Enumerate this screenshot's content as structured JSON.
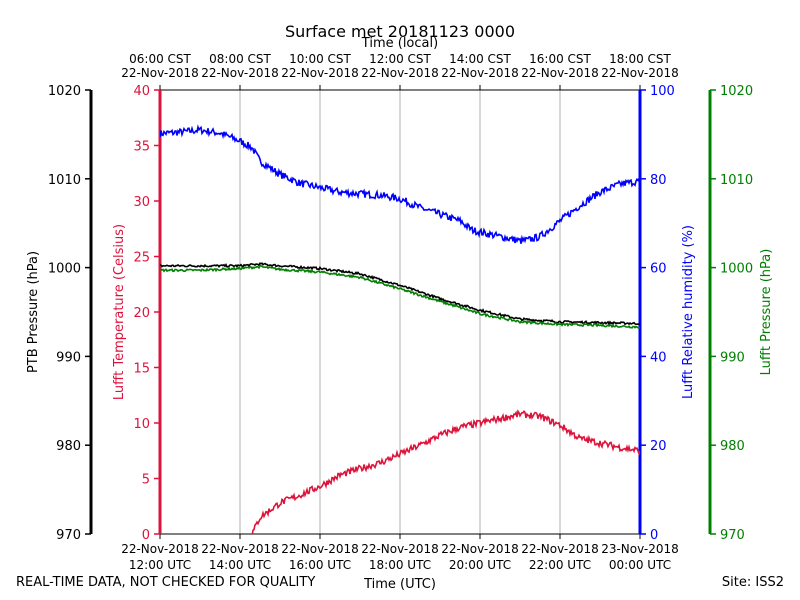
{
  "chart_data": {
    "type": "line",
    "title": "Surface met 20181123 0000",
    "x_top_label": "Time (local)",
    "x_bottom_label": "Time (UTC)",
    "x_range_utc_hours": [
      12,
      24
    ],
    "x_top_ticks": [
      {
        "time": "06:00 CST",
        "date": "22-Nov-2018"
      },
      {
        "time": "08:00 CST",
        "date": "22-Nov-2018"
      },
      {
        "time": "10:00 CST",
        "date": "22-Nov-2018"
      },
      {
        "time": "12:00 CST",
        "date": "22-Nov-2018"
      },
      {
        "time": "14:00 CST",
        "date": "22-Nov-2018"
      },
      {
        "time": "16:00 CST",
        "date": "22-Nov-2018"
      },
      {
        "time": "18:00 CST",
        "date": "22-Nov-2018"
      }
    ],
    "x_bottom_ticks": [
      {
        "date": "22-Nov-2018",
        "time": "12:00 UTC"
      },
      {
        "date": "22-Nov-2018",
        "time": "14:00 UTC"
      },
      {
        "date": "22-Nov-2018",
        "time": "16:00 UTC"
      },
      {
        "date": "22-Nov-2018",
        "time": "18:00 UTC"
      },
      {
        "date": "22-Nov-2018",
        "time": "20:00 UTC"
      },
      {
        "date": "22-Nov-2018",
        "time": "22:00 UTC"
      },
      {
        "date": "23-Nov-2018",
        "time": "00:00 UTC"
      }
    ],
    "axes": {
      "ptb_pressure": {
        "label": "PTB Pressure (hPa)",
        "range": [
          970,
          1020
        ],
        "ticks": [
          "970",
          "980",
          "990",
          "1000",
          "1010",
          "1020"
        ],
        "color": "#000000"
      },
      "temperature": {
        "label": "Lufft Temperature (Celsius)",
        "range": [
          0,
          40
        ],
        "ticks": [
          "0",
          "5",
          "10",
          "15",
          "20",
          "25",
          "30",
          "35",
          "40"
        ],
        "color": "#dc143c"
      },
      "humidity": {
        "label": "Lufft Relative humidity (%)",
        "range": [
          0,
          100
        ],
        "ticks": [
          "0",
          "20",
          "40",
          "60",
          "80",
          "100"
        ],
        "color": "#0000ff"
      },
      "lufft_pressure": {
        "label": "Lufft Pressure (hPa)",
        "range": [
          970,
          1020
        ],
        "ticks": [
          "970",
          "980",
          "990",
          "1000",
          "1010",
          "1020"
        ],
        "color": "#008000"
      }
    },
    "series": [
      {
        "name": "Lufft Relative humidity (%)",
        "axis": "humidity",
        "color": "#0000ff",
        "x": [
          12.0,
          12.5,
          13.0,
          13.5,
          14.0,
          14.3,
          14.5,
          15.0,
          15.5,
          16.0,
          16.5,
          17.0,
          17.5,
          18.0,
          18.5,
          19.0,
          19.5,
          19.8,
          20.0,
          20.5,
          21.0,
          21.2,
          21.5,
          22.0,
          22.5,
          23.0,
          23.5,
          24.0
        ],
        "values": [
          90.2,
          90.5,
          91.0,
          90.3,
          88.5,
          87.0,
          84.0,
          81.0,
          79.0,
          78.0,
          77.0,
          76.6,
          76.3,
          75.5,
          73.5,
          72.0,
          70.5,
          68.5,
          68.0,
          67.0,
          66.0,
          66.2,
          67.0,
          70.5,
          74.0,
          77.0,
          78.8,
          79.5
        ]
      },
      {
        "name": "PTB Pressure (hPa)",
        "axis": "ptb_pressure",
        "color": "#000000",
        "x": [
          12.0,
          13.0,
          14.0,
          14.5,
          15.0,
          16.0,
          17.0,
          18.0,
          19.0,
          20.0,
          21.0,
          22.0,
          23.0,
          24.0
        ],
        "values": [
          1000.2,
          1000.2,
          1000.2,
          1000.4,
          1000.2,
          999.9,
          999.3,
          998.0,
          996.5,
          995.2,
          994.2,
          993.9,
          993.8,
          993.7
        ]
      },
      {
        "name": "Lufft Pressure (hPa)",
        "axis": "lufft_pressure",
        "color": "#008000",
        "x": [
          12.0,
          13.0,
          14.0,
          14.5,
          15.0,
          16.0,
          17.0,
          18.0,
          19.0,
          20.0,
          21.0,
          22.0,
          23.0,
          24.0
        ],
        "values": [
          999.7,
          999.7,
          999.9,
          1000.1,
          999.8,
          999.5,
          998.9,
          997.6,
          996.2,
          994.8,
          993.9,
          993.6,
          993.5,
          993.3
        ]
      },
      {
        "name": "Lufft Temperature (Celsius)",
        "axis": "temperature",
        "color": "#dc143c",
        "x": [
          14.3,
          14.5,
          15.0,
          15.5,
          16.0,
          16.5,
          17.0,
          17.5,
          18.0,
          18.5,
          19.0,
          19.5,
          20.0,
          20.5,
          21.0,
          21.5,
          22.0,
          22.5,
          23.0,
          23.5,
          24.0
        ],
        "values": [
          0.0,
          1.5,
          2.8,
          3.5,
          4.3,
          5.3,
          5.9,
          6.4,
          7.2,
          8.0,
          8.9,
          9.6,
          10.0,
          10.4,
          10.8,
          10.6,
          9.8,
          8.6,
          8.2,
          7.8,
          7.5
        ]
      }
    ]
  },
  "footer": {
    "disclaimer": "REAL-TIME DATA, NOT CHECKED FOR QUALITY",
    "site": "Site: ISS2"
  }
}
